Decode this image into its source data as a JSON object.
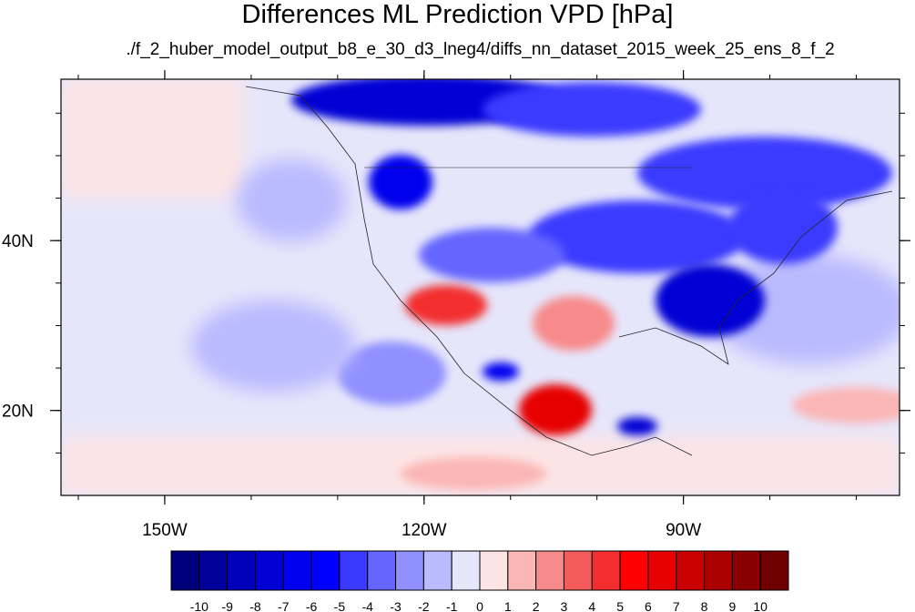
{
  "title": "Differences ML Prediction VPD [hPa]",
  "subtitle": "./f_2_huber_model_output_b8_e_30_d3_lneg4/diffs_nn_dataset_2015_week_25_ens_8_f_2",
  "map": {
    "lon_range": [
      -162,
      -65
    ],
    "lat_range": [
      10,
      59
    ],
    "lon_ticks": [
      {
        "value": -150,
        "label": "150W"
      },
      {
        "value": -120,
        "label": "120W"
      },
      {
        "value": -90,
        "label": "90W"
      }
    ],
    "lat_ticks": [
      {
        "value": 40,
        "label": "40N"
      },
      {
        "value": 20,
        "label": "20N"
      }
    ],
    "colorbar": {
      "levels": [
        "-10",
        "-9",
        "-8",
        "-7",
        "-6",
        "-5",
        "-4",
        "-3",
        "-2",
        "-1",
        "0",
        "1",
        "2",
        "3",
        "4",
        "5",
        "6",
        "7",
        "8",
        "9",
        "10"
      ],
      "colors": [
        "#00007a",
        "#00009a",
        "#0000b8",
        "#0000d4",
        "#0000ee",
        "#0000ff",
        "#3a3aff",
        "#6565ff",
        "#9090ff",
        "#babaff",
        "#e6e6fb",
        "#fde4e4",
        "#fbb6b6",
        "#f78a8a",
        "#f45c5c",
        "#f22e2e",
        "#ff0000",
        "#e60000",
        "#c80000",
        "#aa0000",
        "#8a0000",
        "#700000"
      ]
    }
  }
}
